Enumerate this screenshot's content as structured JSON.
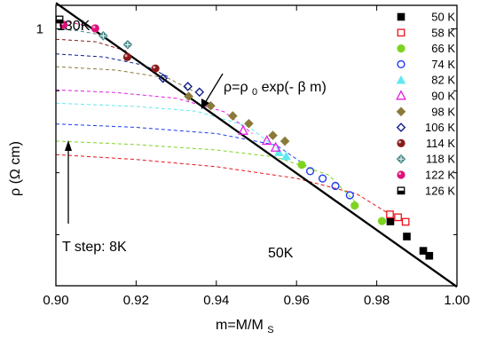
{
  "chart_data": {
    "type": "scatter",
    "xlabel": "m=M/M",
    "xlabel_sub": "S",
    "ylabel": "ρ (Ω cm)",
    "xlim": [
      0.9,
      1.0
    ],
    "ylog": true,
    "ylim": [
      0.0565,
      1.3
    ],
    "x_ticks": [
      "0.90",
      "0.92",
      "0.94",
      "0.96",
      "0.98",
      "1.00"
    ],
    "x_tick_values": [
      0.9,
      0.92,
      0.94,
      0.96,
      0.98,
      1.0
    ],
    "y_ticks": [
      "1"
    ],
    "y_tick_values": [
      1.0
    ],
    "y_minor_tick_values": [
      0.5,
      0.2,
      0.1
    ],
    "legend_position": "right",
    "fit_line": {
      "x0": 0.9,
      "y0": 1.335,
      "x1": 1.0,
      "y1": 0.05585
    },
    "series": [
      {
        "name": "50 K",
        "color": "#000000",
        "marker": "square-filled",
        "points": [
          [
            0.9834,
            0.116
          ],
          [
            0.9875,
            0.098
          ],
          [
            0.9916,
            0.0835
          ],
          [
            0.9931,
            0.079
          ]
        ],
        "curve": []
      },
      {
        "name": "58 K",
        "color": "#e8141c",
        "marker": "square-open",
        "points": [
          [
            0.9833,
            0.1255
          ],
          [
            0.9853,
            0.1215
          ],
          [
            0.9872,
            0.1155
          ]
        ],
        "curve": [
          [
            0.9,
            0.245
          ],
          [
            0.92,
            0.232
          ],
          [
            0.94,
            0.214
          ],
          [
            0.96,
            0.188
          ],
          [
            0.975,
            0.158
          ],
          [
            0.983,
            0.1265
          ]
        ]
      },
      {
        "name": "66 K",
        "color": "#7ed321",
        "marker": "circle-filled",
        "points": [
          [
            0.9613,
            0.2185
          ],
          [
            0.9745,
            0.1385
          ],
          [
            0.9813,
            0.1165
          ]
        ],
        "curve": [
          [
            0.9,
            0.285
          ],
          [
            0.92,
            0.274
          ],
          [
            0.94,
            0.258
          ],
          [
            0.955,
            0.238
          ],
          [
            0.968,
            0.195
          ],
          [
            0.975,
            0.142
          ]
        ]
      },
      {
        "name": "74 K",
        "color": "#1e3cf0",
        "marker": "circle-open",
        "points": [
          [
            0.9634,
            0.2035
          ],
          [
            0.9665,
            0.1875
          ],
          [
            0.9697,
            0.1725
          ],
          [
            0.9733,
            0.1555
          ]
        ],
        "curve": [
          [
            0.9,
            0.345
          ],
          [
            0.92,
            0.332
          ],
          [
            0.94,
            0.31
          ],
          [
            0.955,
            0.272
          ],
          [
            0.963,
            0.212
          ]
        ]
      },
      {
        "name": "82 K",
        "color": "#60e8f0",
        "marker": "triangle-filled",
        "points": [
          [
            0.9556,
            0.2515
          ],
          [
            0.9574,
            0.2405
          ]
        ],
        "curve": [
          [
            0.9,
            0.435
          ],
          [
            0.92,
            0.42
          ],
          [
            0.935,
            0.398
          ],
          [
            0.948,
            0.335
          ],
          [
            0.956,
            0.255
          ]
        ]
      },
      {
        "name": "90 K",
        "color": "#e020e0",
        "marker": "triangle-open",
        "points": [
          [
            0.9467,
            0.3195
          ],
          [
            0.9526,
            0.2855
          ],
          [
            0.9548,
            0.2645
          ]
        ],
        "curve": [
          [
            0.9,
            0.505
          ],
          [
            0.915,
            0.49
          ],
          [
            0.93,
            0.46
          ],
          [
            0.942,
            0.395
          ],
          [
            0.949,
            0.31
          ]
        ]
      },
      {
        "name": "98 K",
        "color": "#8a7a3a",
        "marker": "diamond-filled",
        "points": [
          [
            0.9331,
            0.4695
          ],
          [
            0.9386,
            0.4225
          ],
          [
            0.9441,
            0.3775
          ],
          [
            0.9481,
            0.3465
          ],
          [
            0.9541,
            0.3035
          ],
          [
            0.9571,
            0.2845
          ]
        ],
        "curve": [
          [
            0.9,
            0.655
          ],
          [
            0.915,
            0.63
          ],
          [
            0.928,
            0.575
          ],
          [
            0.935,
            0.49
          ]
        ]
      },
      {
        "name": "106 K",
        "color": "#10208a",
        "marker": "diamond-open",
        "points": [
          [
            0.9267,
            0.5745
          ],
          [
            0.9329,
            0.5245
          ],
          [
            0.9358,
            0.4925
          ]
        ],
        "curve": [
          [
            0.9,
            0.755
          ],
          [
            0.912,
            0.73
          ],
          [
            0.922,
            0.665
          ],
          [
            0.928,
            0.585
          ]
        ]
      },
      {
        "name": "114 K",
        "color": "#8a1a1a",
        "marker": "circle-ball",
        "points": [
          [
            0.9178,
            0.7295
          ],
          [
            0.9248,
            0.6415
          ]
        ],
        "curve": [
          [
            0.9,
            0.89
          ],
          [
            0.91,
            0.865
          ],
          [
            0.918,
            0.775
          ]
        ]
      },
      {
        "name": "118 K",
        "color": "#4a8a8a",
        "marker": "diamond-plus",
        "points": [
          [
            0.9118,
            0.9245
          ],
          [
            0.9179,
            0.8375
          ]
        ],
        "curve": [
          [
            0.9,
            1.0
          ],
          [
            0.906,
            0.975
          ],
          [
            0.912,
            0.93
          ]
        ]
      },
      {
        "name": "122 K",
        "color": "#e0107a",
        "marker": "circle-ball",
        "points": [
          [
            0.9019,
            1.045
          ],
          [
            0.9098,
            1.005
          ]
        ],
        "curve": [
          [
            0.9,
            1.1
          ],
          [
            0.903,
            1.08
          ],
          [
            0.909,
            1.02
          ]
        ]
      },
      {
        "name": "126 K",
        "color": "#000000",
        "marker": "square-half",
        "points": [
          [
            0.9009,
            1.11
          ]
        ],
        "curve": []
      }
    ],
    "annotations": {
      "top_label": "130K",
      "bottom_label": "50K",
      "step_label": "T step: 8K",
      "formula_lhs": "ρ=ρ",
      "formula_sub": "0",
      "formula_rhs": " exp(- β m)"
    }
  }
}
